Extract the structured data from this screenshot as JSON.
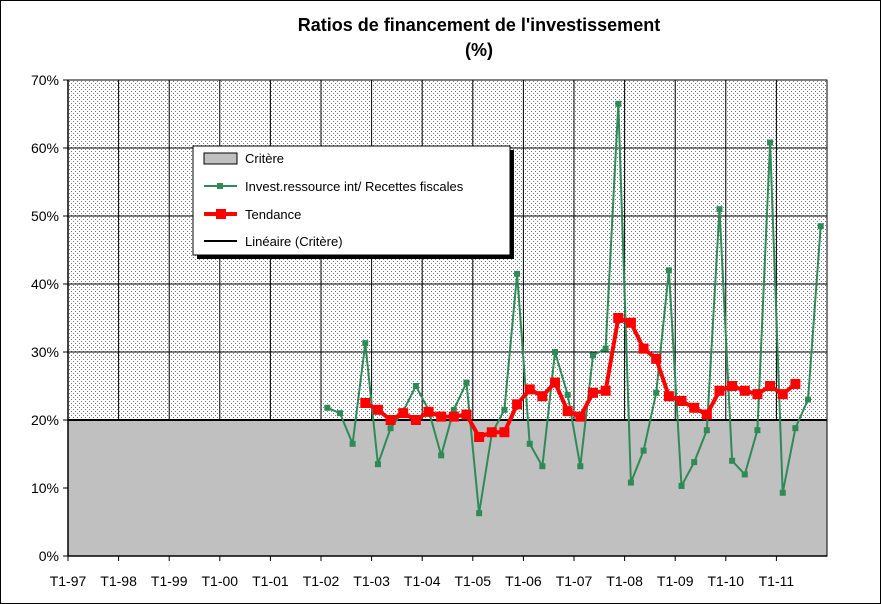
{
  "chart_data": {
    "type": "line",
    "title": "Ratios de financement de l'investissement",
    "subtitle": "(%)",
    "xlabel": "",
    "ylabel": "",
    "ylim": [
      0,
      70
    ],
    "ytick_labels": [
      "0%",
      "10%",
      "20%",
      "30%",
      "40%",
      "50%",
      "60%",
      "70%"
    ],
    "x_tick_labels": [
      "T1-97",
      "T1-98",
      "T1-99",
      "T1-00",
      "T1-01",
      "T1-02",
      "T1-03",
      "T1-04",
      "T1-05",
      "T1-06",
      "T1-07",
      "T1-08",
      "T1-09",
      "T1-10",
      "T1-11"
    ],
    "quarters_per_label": 4,
    "grid": true,
    "legend_position": "upper-center",
    "series": [
      {
        "name": "Critère",
        "kind": "area",
        "color": "#c0c0c0",
        "constant": 20
      },
      {
        "name": "Invest.ressource  int/ Recettes fiscales",
        "kind": "line",
        "color": "#2e8b57",
        "marker": "square",
        "start_index": 20,
        "values": [
          21.8,
          21.0,
          16.5,
          31.3,
          13.5,
          18.8,
          21.3,
          25.0,
          21.5,
          14.8,
          21.5,
          25.5,
          6.3,
          18.0,
          21.5,
          41.5,
          16.5,
          13.2,
          30.0,
          23.7,
          13.2,
          29.5,
          30.5,
          66.5,
          10.8,
          15.5,
          24.0,
          42.0,
          10.3,
          13.8,
          18.5,
          51.0,
          14.0,
          12.0,
          18.5,
          60.8,
          9.3,
          18.8,
          23.0,
          48.5
        ]
      },
      {
        "name": "Tendance",
        "kind": "line",
        "color": "#ff0000",
        "marker": "square",
        "start_index": 23,
        "values": [
          22.5,
          21.5,
          20.0,
          21.0,
          20.0,
          21.2,
          20.5,
          20.5,
          20.8,
          17.5,
          18.2,
          18.2,
          22.3,
          24.5,
          23.5,
          25.5,
          21.3,
          20.5,
          24.0,
          24.3,
          35.0,
          34.3,
          30.5,
          29.0,
          23.5,
          22.8,
          21.8,
          20.8,
          24.3,
          25.0,
          24.3,
          23.8,
          25.0,
          23.8,
          25.3
        ]
      },
      {
        "name": "Linéaire (Critère)",
        "kind": "line",
        "color": "#000000",
        "constant": 20
      }
    ]
  }
}
